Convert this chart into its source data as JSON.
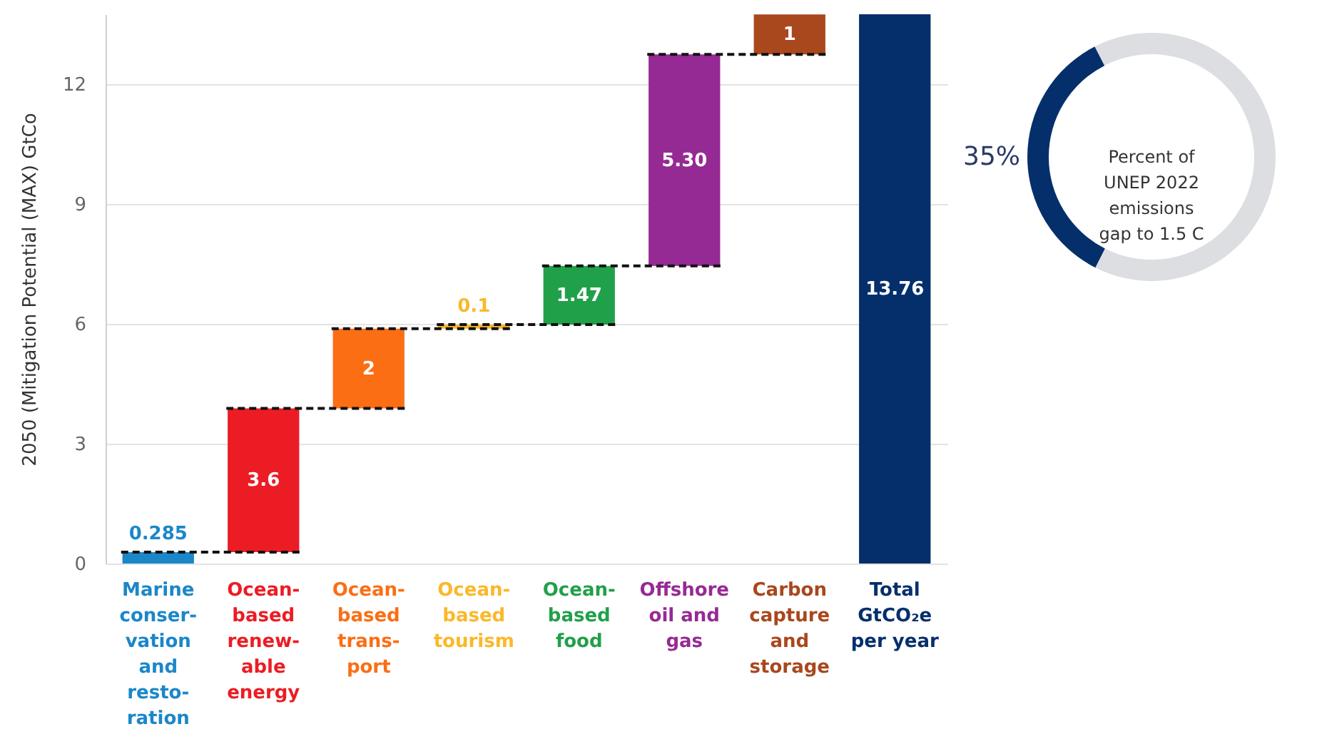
{
  "chart_data": [
    {
      "type": "bar",
      "ylabel": "2050 (Mitigation Potential (MAX) GtCo",
      "categories": [
        "Marine\nconser-\nvation\nand\nresto-\nration",
        "Ocean-\nbased\nrenew-\nable\nenergy",
        "Ocean-\nbased\ntrans-\nport",
        "Ocean-\nbased\ntourism",
        "Ocean-\nbased\nfood",
        "Offshore\noil and\ngas",
        "Carbon\ncapture\nand\nstorage",
        "Total\nGtCO₂e\nper year"
      ],
      "values": [
        0.285,
        3.6,
        2,
        0.1,
        1.47,
        5.3,
        1,
        13.76
      ],
      "base": [
        0,
        0.285,
        3.885,
        5.885,
        5.985,
        7.455,
        12.755,
        0
      ],
      "colors": [
        "#1b87c9",
        "#ec1c24",
        "#fb6e14",
        "#fbb82a",
        "#21a04a",
        "#962a94",
        "#a9471d",
        "#052f6b"
      ],
      "value_labels": [
        "0.285",
        "3.6",
        "2",
        "0.1",
        "1.47",
        "5.30",
        "1",
        "13.76"
      ],
      "ylim": [
        0,
        13.76
      ],
      "yticks": [
        0,
        3,
        6,
        9,
        12
      ],
      "grid": "y"
    },
    {
      "type": "donut",
      "categories": [
        null,
        null
      ],
      "values": [
        35,
        65
      ],
      "colors": [
        "#052f6b",
        "#dcdee1"
      ],
      "value_labels": [
        "35%",
        null
      ],
      "annotations": [
        "Percent of\nUNEP 2022\nemissions\ngap to 1.5 C"
      ]
    }
  ]
}
